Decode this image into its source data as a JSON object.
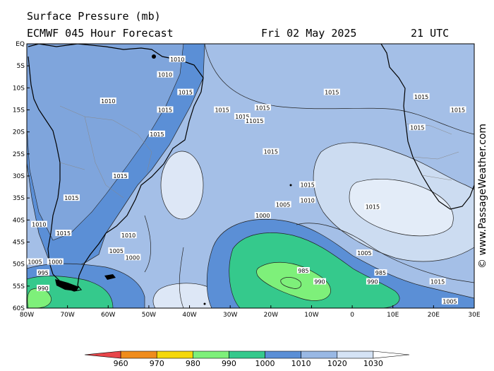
{
  "header": {
    "title": "Surface Pressure (mb)",
    "model": "ECMWF 045 Hour Forecast",
    "date": "Fri 02 May 2025",
    "time": "21 UTC"
  },
  "watermark": "© www.PassageWeather.com",
  "axes": {
    "lat_labels": [
      "EQ",
      "5S",
      "10S",
      "15S",
      "20S",
      "25S",
      "30S",
      "35S",
      "40S",
      "45S",
      "50S",
      "55S",
      "60S"
    ],
    "lon_labels": [
      "80W",
      "70W",
      "60W",
      "50W",
      "40W",
      "30W",
      "20W",
      "10W",
      "0",
      "10E",
      "20E",
      "30E"
    ]
  },
  "isobar_labels": [
    {
      "text": "1015",
      "lon": -5,
      "lat": -11
    },
    {
      "text": "1015",
      "lon": -22,
      "lat": -14.5
    },
    {
      "text": "1015",
      "lon": -32,
      "lat": -15
    },
    {
      "text": "1015",
      "lon": -27,
      "lat": -16.5
    },
    {
      "text": "11015",
      "lon": -24,
      "lat": -17.5
    },
    {
      "text": "1015",
      "lon": -20,
      "lat": -24.5
    },
    {
      "text": "1015",
      "lon": -11,
      "lat": -32
    },
    {
      "text": "1015",
      "lon": 5,
      "lat": -37
    },
    {
      "text": "1015",
      "lon": 17,
      "lat": -12
    },
    {
      "text": "1015",
      "lon": 16,
      "lat": -19
    },
    {
      "text": "1015",
      "lon": 21,
      "lat": -54
    },
    {
      "text": "1010",
      "lon": -11,
      "lat": -35.5
    },
    {
      "text": "1010",
      "lon": -55,
      "lat": -43.5
    },
    {
      "text": "1010",
      "lon": -46,
      "lat": -7
    },
    {
      "text": "1010",
      "lon": -60,
      "lat": -13
    },
    {
      "text": "1005",
      "lon": -17,
      "lat": -36.5
    },
    {
      "text": "1005",
      "lon": -58,
      "lat": -47
    },
    {
      "text": "1005",
      "lon": 3,
      "lat": -47.5
    },
    {
      "text": "1005",
      "lon": 24,
      "lat": -58.5
    },
    {
      "text": "1000",
      "lon": -22,
      "lat": -39
    },
    {
      "text": "1000",
      "lon": -54,
      "lat": -48.5
    },
    {
      "text": "1000",
      "lon": -73,
      "lat": -49.5
    },
    {
      "text": "995",
      "lon": -76,
      "lat": -52
    },
    {
      "text": "990",
      "lon": -76,
      "lat": -55.5
    },
    {
      "text": "985",
      "lon": -12,
      "lat": -51.5
    },
    {
      "text": "985",
      "lon": 7,
      "lat": -52
    },
    {
      "text": "990",
      "lon": -8,
      "lat": -54
    },
    {
      "text": "990",
      "lon": 5,
      "lat": -54
    },
    {
      "text": "1005",
      "lon": -78,
      "lat": -49.5
    },
    {
      "text": "1010",
      "lon": -77,
      "lat": -41
    },
    {
      "text": "1015",
      "lon": -71,
      "lat": -43
    },
    {
      "text": "1015",
      "lon": -69,
      "lat": -35
    },
    {
      "text": "1015",
      "lon": -57,
      "lat": -30
    },
    {
      "text": "1015",
      "lon": -46,
      "lat": -15
    },
    {
      "text": "1015",
      "lon": -48,
      "lat": -20.5
    },
    {
      "text": "1015",
      "lon": -41,
      "lat": -11
    },
    {
      "text": "1010",
      "lon": -43,
      "lat": -3.5
    },
    {
      "text": "1015",
      "lon": 26,
      "lat": -15
    }
  ],
  "colorbar": {
    "ticks": [
      "960",
      "970",
      "980",
      "990",
      "1000",
      "1010",
      "1020",
      "1030"
    ],
    "colors": [
      "#e8454a",
      "#ef8c1c",
      "#f5d80b",
      "#7ef07a",
      "#35c98c",
      "#5b8fd6",
      "#99b8e4",
      "#d5e3f5"
    ]
  },
  "colors": {
    "land": "#4a7bd0",
    "ocean_base": "#a4bfe7",
    "coast": "#000000"
  },
  "chart_data": {
    "type": "heatmap",
    "title": "Surface Pressure (mb)",
    "subtitle": "ECMWF 045 Hour Forecast  Fri 02 May 2025  21 UTC",
    "xlabel": "",
    "ylabel": "",
    "x_range": [
      "80W",
      "30E"
    ],
    "y_range": [
      "EQ",
      "60S"
    ],
    "units": "mb",
    "levels": [
      960,
      970,
      980,
      990,
      1000,
      1010,
      1020,
      1030
    ],
    "systems": [
      {
        "type": "low",
        "center_lon": -12,
        "center_lat": -50.5,
        "value": 985
      },
      {
        "type": "high",
        "center_lon": 10,
        "center_lat": -31,
        "value": 1025
      },
      {
        "type": "high",
        "center_lon": -43,
        "center_lat": -30,
        "value": 1020
      },
      {
        "type": "high",
        "center_lon": -45,
        "center_lat": -55,
        "value": 1020
      },
      {
        "type": "low",
        "center_lon": -75,
        "center_lat": -55,
        "value": 990
      }
    ]
  }
}
